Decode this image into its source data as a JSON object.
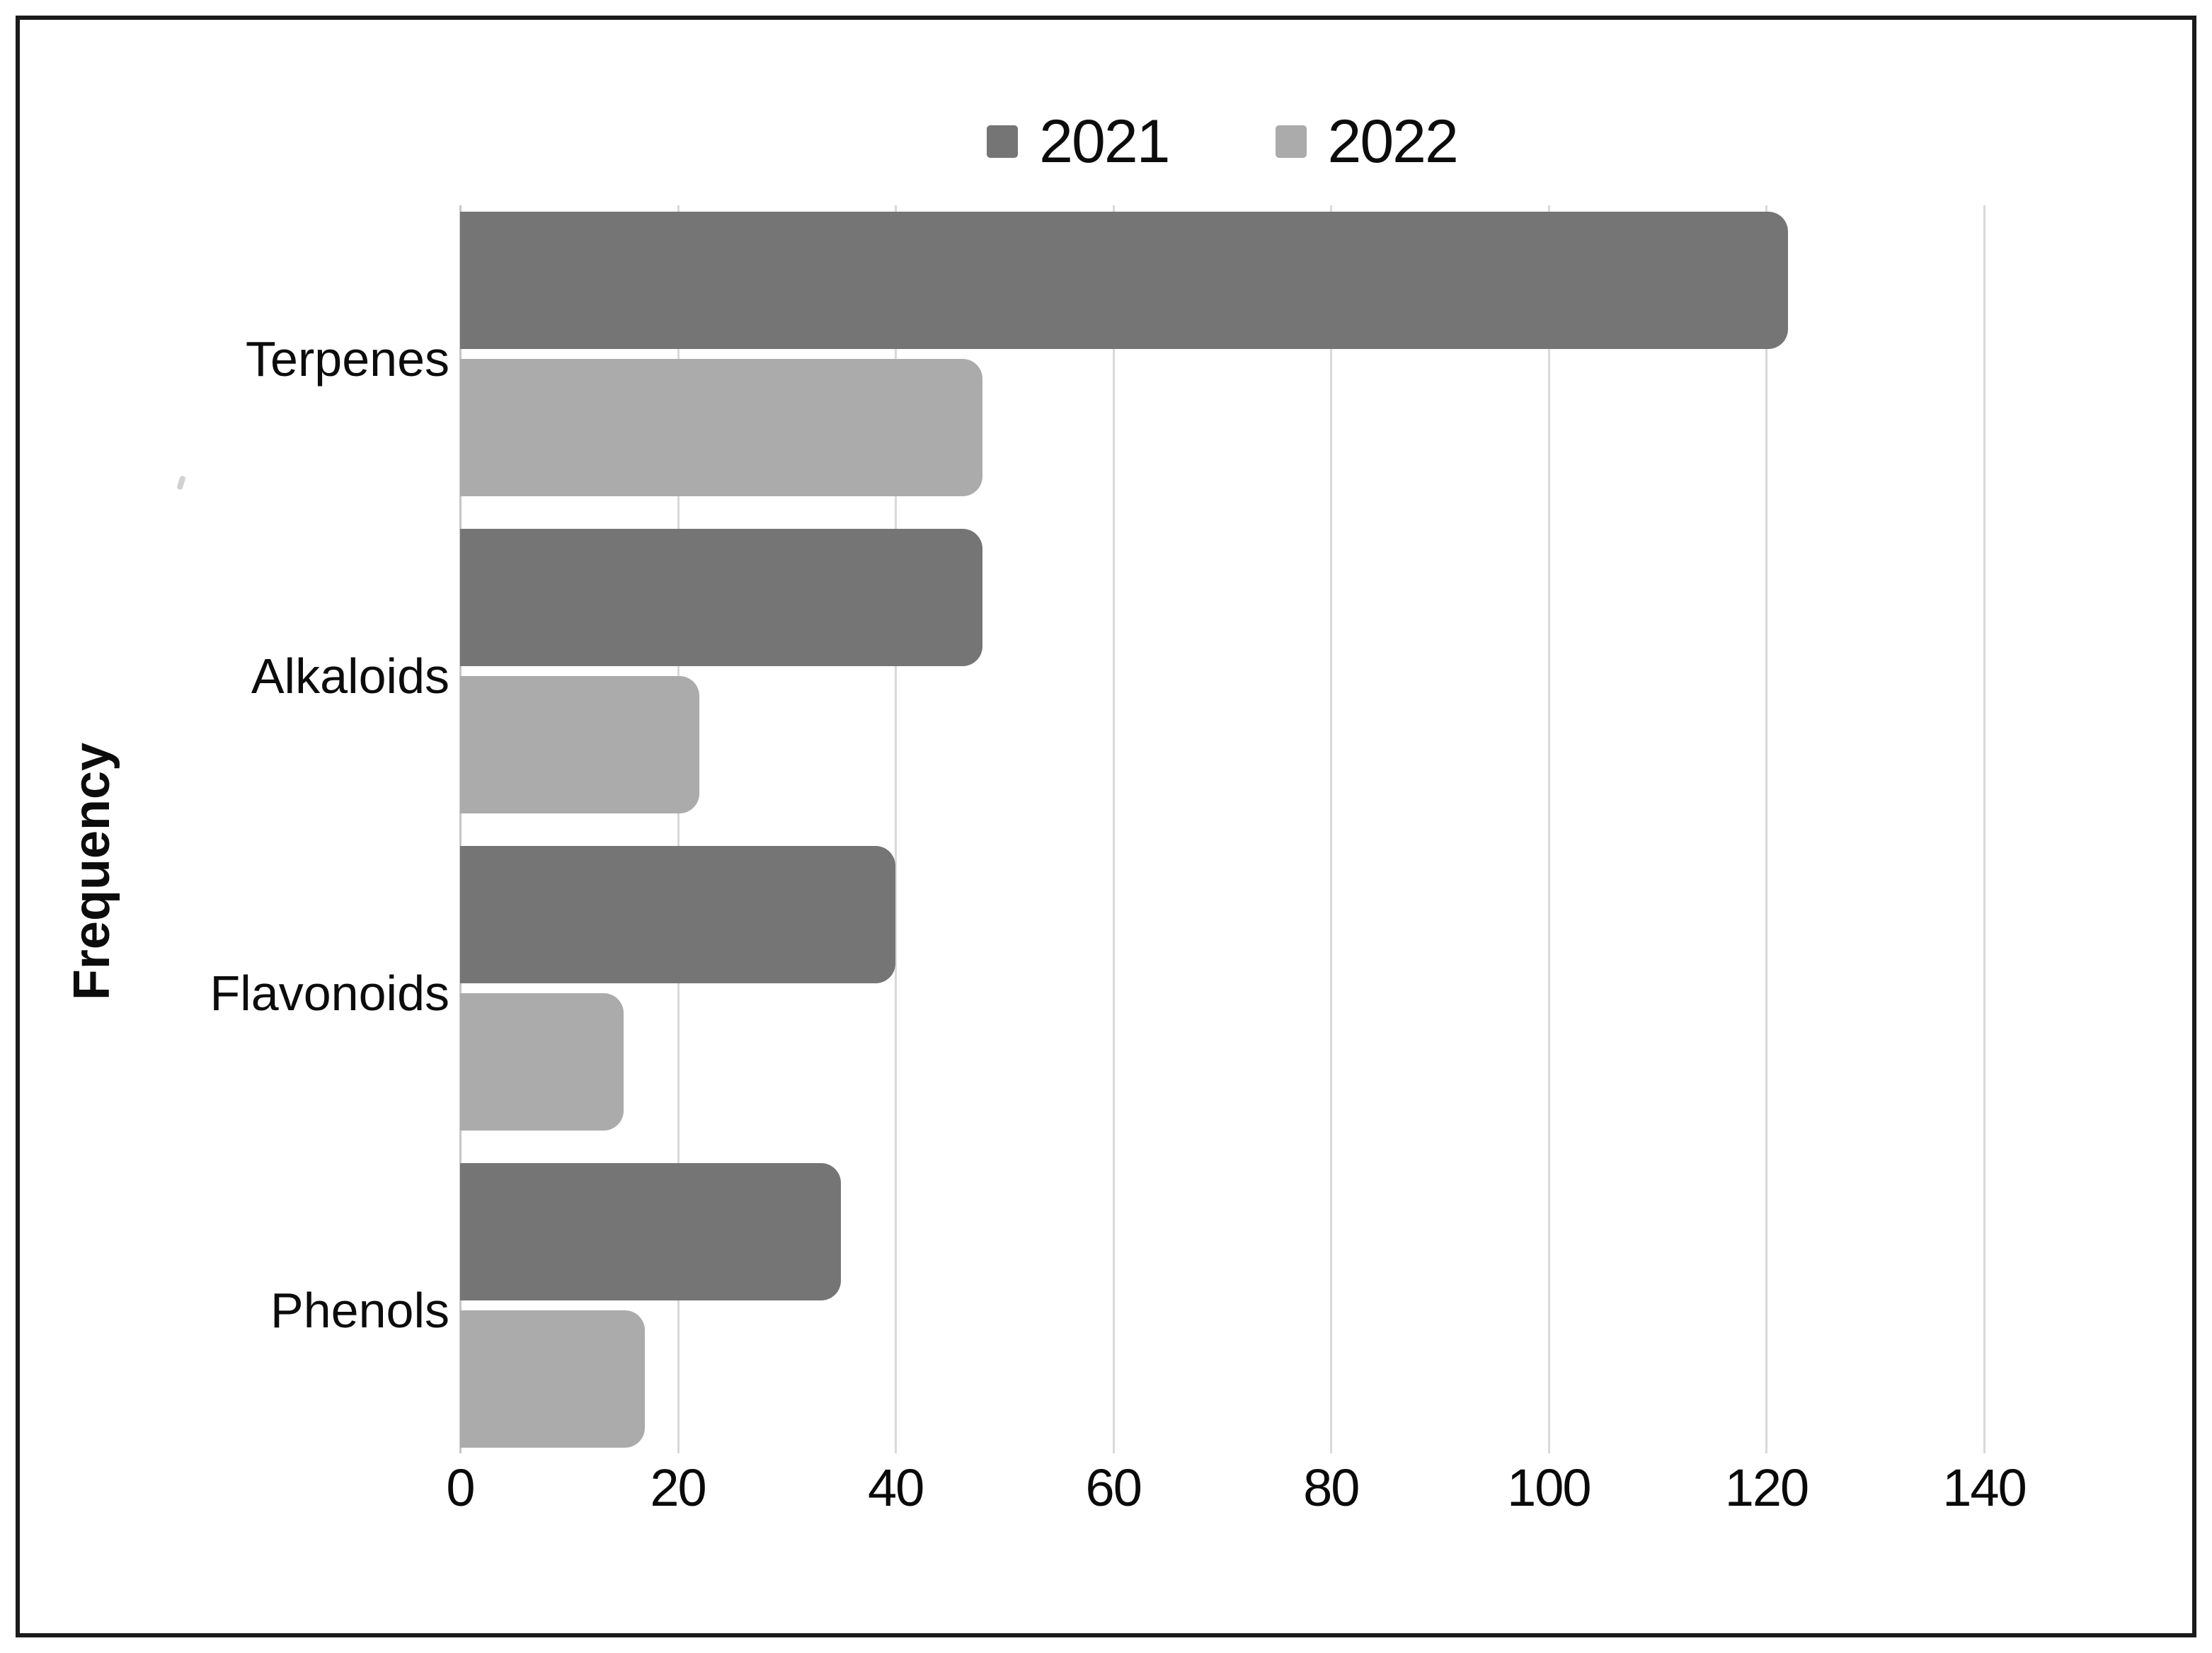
{
  "chart_data": {
    "type": "bar",
    "orientation": "horizontal",
    "categories": [
      "Terpenes",
      "Alkaloids",
      "Flavonoids",
      "Phenols"
    ],
    "series": [
      {
        "name": "2021",
        "color": "#757575",
        "values": [
          122,
          48,
          40,
          35
        ]
      },
      {
        "name": "2022",
        "color": "#ababab",
        "values": [
          48,
          22,
          15,
          17
        ]
      }
    ],
    "xlabel": "",
    "ylabel": "Frequency",
    "xlim": [
      0,
      140
    ],
    "xticks": [
      "0",
      "20",
      "40",
      "60",
      "80",
      "100",
      "120",
      "140"
    ],
    "grid": "vertical-gridlines",
    "legend_position": "top-center",
    "gridline_color": "#d9d9d9",
    "background_color": "#ffffff",
    "border_color": "#1b1b1b"
  },
  "legend": {
    "items": [
      {
        "label": "2021",
        "color": "#757575"
      },
      {
        "label": "2022",
        "color": "#ababab"
      }
    ]
  }
}
